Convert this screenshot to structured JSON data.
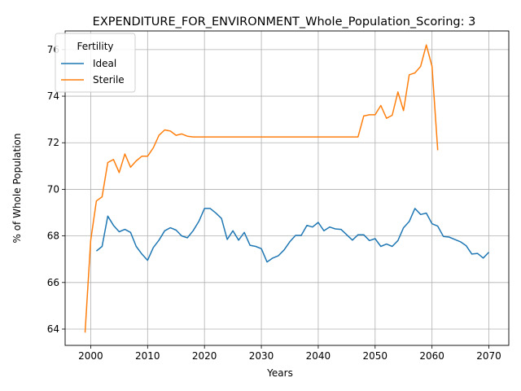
{
  "chart_data": {
    "type": "line",
    "title": "EXPENDITURE_FOR_ENVIRONMENT_Whole_Population_Scoring: 3",
    "xlabel": "Years",
    "ylabel": "% of Whole Population",
    "xlim": [
      1995.5,
      2073.5
    ],
    "ylim": [
      63.3,
      76.8
    ],
    "xticks": [
      2000,
      2010,
      2020,
      2030,
      2040,
      2050,
      2060,
      2070
    ],
    "yticks": [
      64,
      66,
      68,
      70,
      72,
      74,
      76
    ],
    "grid": true,
    "legend": {
      "title": "Fertility",
      "placement": "upper-left"
    },
    "series": [
      {
        "name": "Ideal",
        "color": "#1f77b4",
        "x": [
          2001,
          2002,
          2003,
          2004,
          2005,
          2006,
          2007,
          2008,
          2009,
          2010,
          2011,
          2012,
          2013,
          2014,
          2015,
          2016,
          2017,
          2018,
          2019,
          2020,
          2021,
          2022,
          2023,
          2024,
          2025,
          2026,
          2027,
          2028,
          2029,
          2030,
          2031,
          2032,
          2033,
          2034,
          2035,
          2036,
          2037,
          2038,
          2039,
          2040,
          2041,
          2042,
          2043,
          2044,
          2045,
          2046,
          2047,
          2048,
          2049,
          2050,
          2051,
          2052,
          2053,
          2054,
          2055,
          2056,
          2057,
          2058,
          2059,
          2060,
          2061,
          2062,
          2063,
          2064,
          2065,
          2066,
          2067,
          2068,
          2069,
          2070
        ],
        "y": [
          67.35,
          67.55,
          68.85,
          68.45,
          68.18,
          68.28,
          68.15,
          67.55,
          67.22,
          66.95,
          67.5,
          67.82,
          68.22,
          68.35,
          68.25,
          68.0,
          67.92,
          68.22,
          68.62,
          69.18,
          69.18,
          68.98,
          68.75,
          67.85,
          68.22,
          67.82,
          68.15,
          67.6,
          67.55,
          67.45,
          66.88,
          67.05,
          67.15,
          67.4,
          67.75,
          68.02,
          68.02,
          68.45,
          68.38,
          68.58,
          68.22,
          68.38,
          68.3,
          68.28,
          68.05,
          67.82,
          68.05,
          68.05,
          67.8,
          67.88,
          67.55,
          67.65,
          67.55,
          67.8,
          68.35,
          68.62,
          69.18,
          68.92,
          68.98,
          68.52,
          68.42,
          67.98,
          67.95,
          67.85,
          67.75,
          67.58,
          67.22,
          67.25,
          67.05,
          67.3
        ]
      },
      {
        "name": "Sterile",
        "color": "#ff7f0e",
        "x": [
          1999,
          2000,
          2001,
          2002,
          2003,
          2004,
          2005,
          2006,
          2007,
          2008,
          2009,
          2010,
          2011,
          2012,
          2013,
          2014,
          2015,
          2016,
          2017,
          2018,
          2019,
          2020,
          2021,
          2022,
          2023,
          2024,
          2025,
          2026,
          2027,
          2028,
          2029,
          2030,
          2031,
          2032,
          2033,
          2034,
          2035,
          2036,
          2037,
          2038,
          2039,
          2040,
          2041,
          2042,
          2043,
          2044,
          2045,
          2046,
          2047,
          2048,
          2049,
          2050,
          2051,
          2052,
          2053,
          2054,
          2055,
          2056,
          2057,
          2058,
          2059,
          2060,
          2061
        ],
        "y": [
          63.85,
          67.8,
          69.5,
          69.68,
          71.15,
          71.28,
          70.72,
          71.52,
          70.95,
          71.22,
          71.42,
          71.42,
          71.78,
          72.32,
          72.55,
          72.5,
          72.32,
          72.38,
          72.28,
          72.25,
          72.25,
          72.25,
          72.25,
          72.25,
          72.25,
          72.25,
          72.25,
          72.25,
          72.25,
          72.25,
          72.25,
          72.25,
          72.25,
          72.25,
          72.25,
          72.25,
          72.25,
          72.25,
          72.25,
          72.25,
          72.25,
          72.25,
          72.25,
          72.25,
          72.25,
          72.25,
          72.25,
          72.25,
          72.25,
          73.15,
          73.2,
          73.2,
          73.6,
          73.05,
          73.18,
          74.18,
          73.38,
          74.92,
          75.0,
          75.28,
          76.2,
          75.28,
          71.68
        ]
      }
    ]
  }
}
